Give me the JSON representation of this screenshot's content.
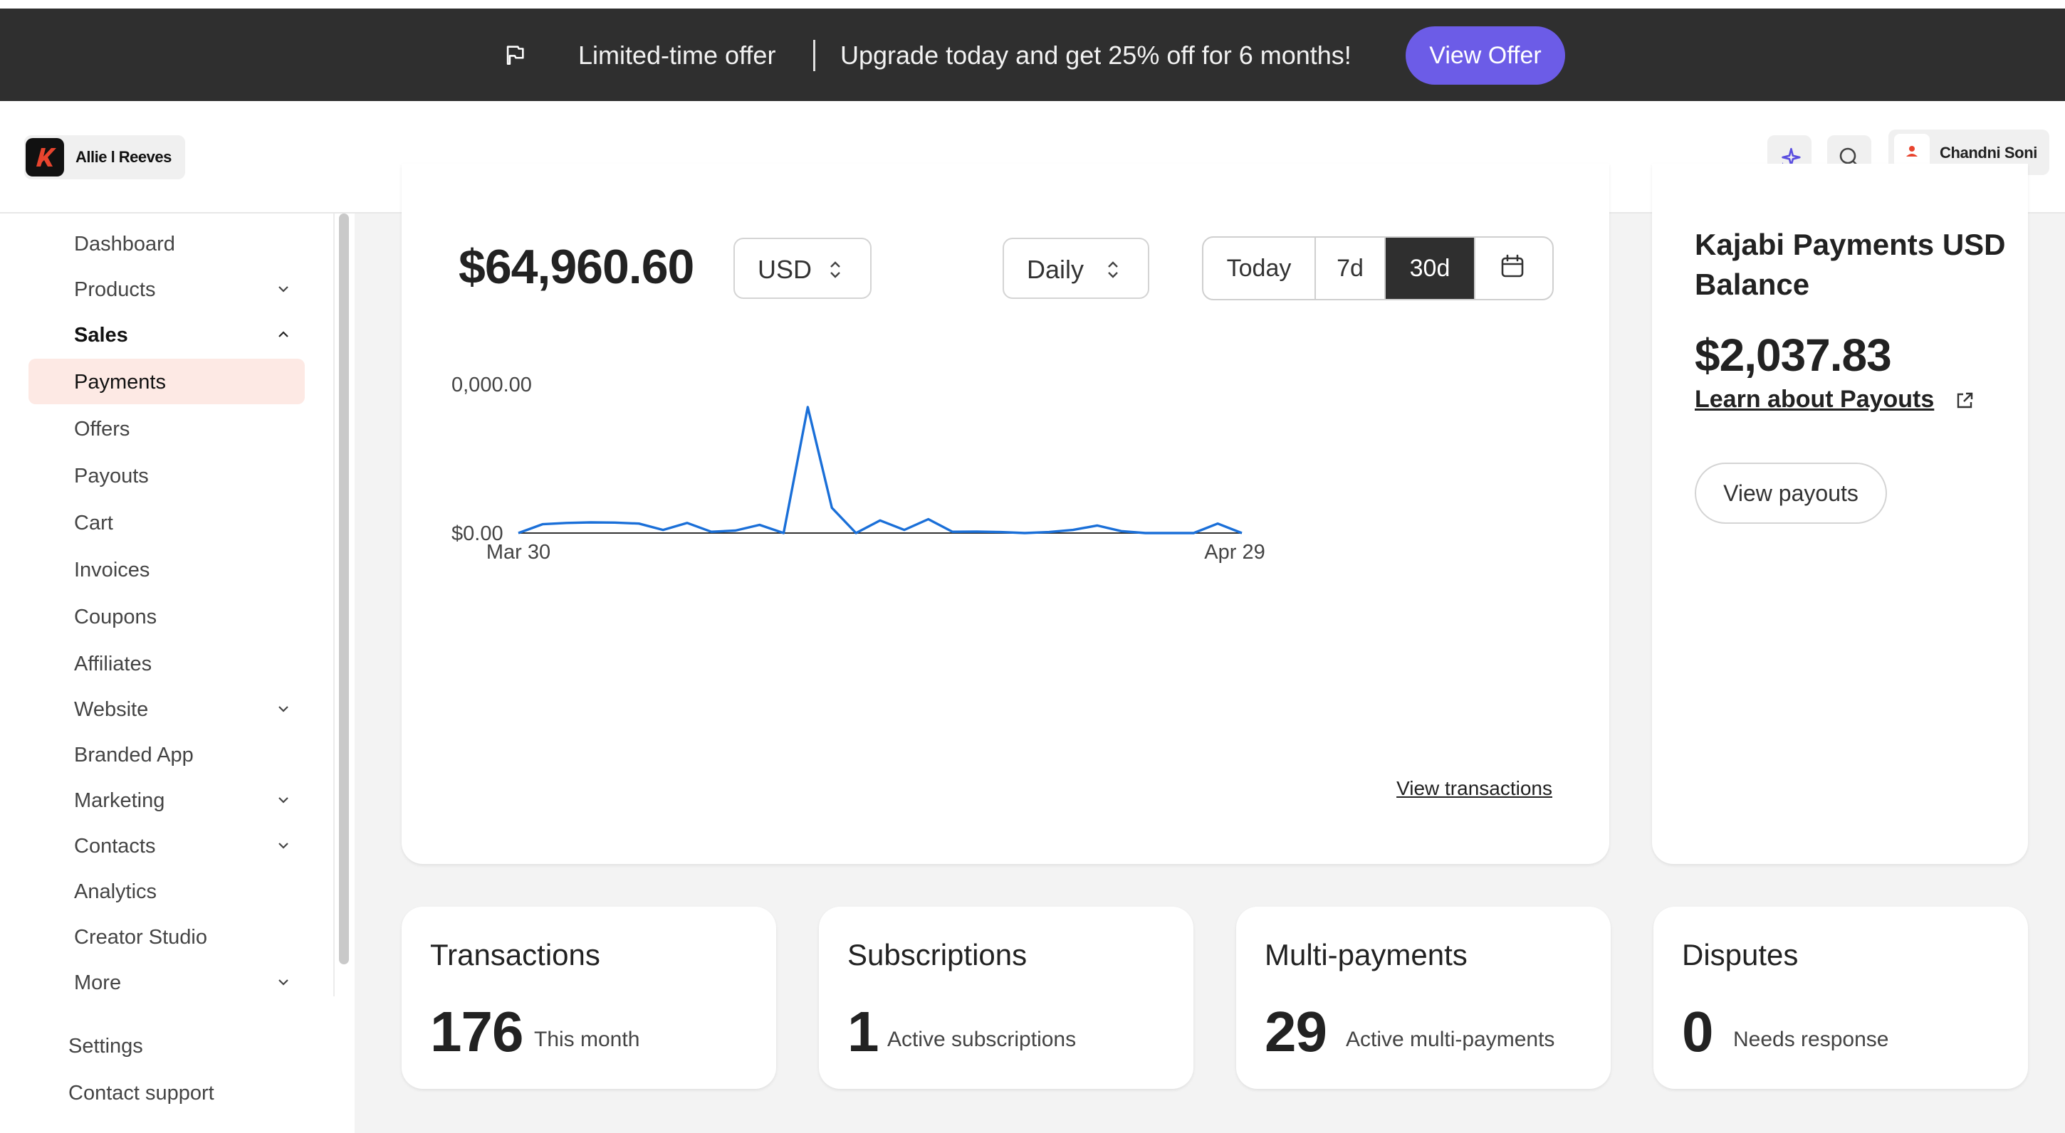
{
  "promo": {
    "offer_label": "Limited-time offer",
    "message": "Upgrade today and get 25% off for 6 months!",
    "button_label": "View Offer"
  },
  "header": {
    "site_name": "Allie l Reeves",
    "user_name": "Chandni Soni",
    "icons": [
      "sparkle-icon",
      "search-icon",
      "user-icon"
    ]
  },
  "sidebar": {
    "items": [
      {
        "label": "Dashboard"
      },
      {
        "label": "Products"
      },
      {
        "label": "Sales"
      },
      {
        "label": "Payments"
      },
      {
        "label": "Offers"
      },
      {
        "label": "Payouts"
      },
      {
        "label": "Cart"
      },
      {
        "label": "Invoices"
      },
      {
        "label": "Coupons"
      },
      {
        "label": "Affiliates"
      },
      {
        "label": "Website"
      },
      {
        "label": "Branded App"
      },
      {
        "label": "Marketing"
      },
      {
        "label": "Contacts"
      },
      {
        "label": "Analytics"
      },
      {
        "label": "Creator Studio"
      },
      {
        "label": "More"
      }
    ],
    "footer": {
      "settings": "Settings",
      "support": "Contact support"
    }
  },
  "payments": {
    "total": "$64,960.60",
    "currency": "USD",
    "interval": "Daily",
    "ranges": [
      "Today",
      "7d",
      "30d"
    ],
    "selected_range": "30d",
    "view_transactions": "View transactions"
  },
  "chart_data": {
    "type": "line",
    "x_labels": [
      "Mar 30",
      "Apr 29"
    ],
    "y_tick_labels": [
      "$0.00",
      "0,000.00"
    ],
    "color": "#1a6fd8",
    "series": [
      {
        "values": [
          0,
          7,
          8,
          8.5,
          8.3,
          7.5,
          2.5,
          8,
          1,
          2,
          6.5,
          0,
          100,
          20,
          0,
          10,
          2.5,
          11,
          1,
          1.2,
          0.8,
          0,
          0.8,
          2.5,
          6,
          1.5,
          0,
          0,
          0,
          7.5,
          0
        ]
      }
    ]
  },
  "balance": {
    "title": "Kajabi Payments USD Balance",
    "amount": "$2,037.83",
    "link": "Learn about Payouts",
    "button": "View payouts"
  },
  "stats": [
    {
      "title": "Transactions",
      "value": "176",
      "sub": "This month"
    },
    {
      "title": "Subscriptions",
      "value": "1",
      "sub": "Active subscriptions"
    },
    {
      "title": "Multi-payments",
      "value": "29",
      "sub": "Active multi-payments"
    },
    {
      "title": "Disputes",
      "value": "0",
      "sub": "Needs response"
    }
  ]
}
